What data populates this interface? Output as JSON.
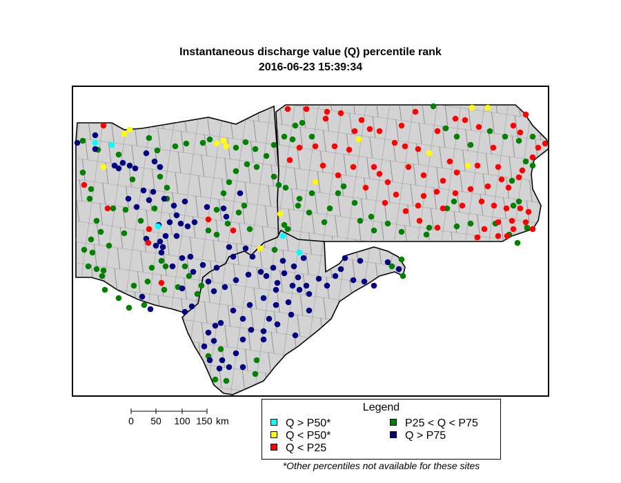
{
  "title": "Instantaneous discharge value (Q) percentile rank",
  "timestamp": "2016-06-23 15:39:34",
  "legend": {
    "title": "Legend",
    "items": [
      {
        "label": "Q > P50*",
        "color": "#00ffff"
      },
      {
        "label": "Q < P50*",
        "color": "#ffff00"
      },
      {
        "label": "Q < P25",
        "color": "#ff0000"
      },
      {
        "label": "P25 < Q < P75",
        "color": "#008000"
      },
      {
        "label": "Q > P75",
        "color": "#000080"
      }
    ]
  },
  "footnote": "*Other percentiles not available for these sites",
  "scale_bar": {
    "ticks": [
      "0",
      "50",
      "100",
      "150"
    ],
    "unit": "km"
  },
  "map_style": {
    "land_fill": "#d3d3d3",
    "border_color": "#000000",
    "county_line_color": "#555555"
  }
}
